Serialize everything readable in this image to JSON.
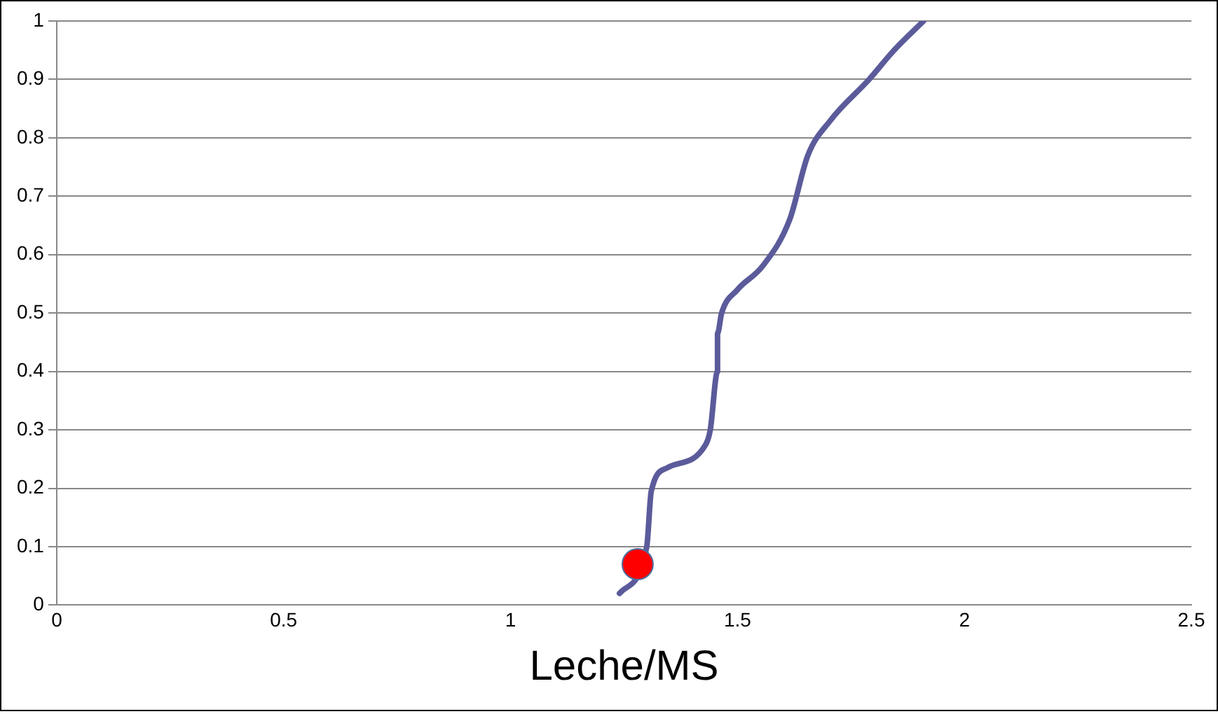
{
  "chart_data": {
    "type": "line",
    "xlabel": "Leche/MS",
    "xlim": [
      0,
      2.5
    ],
    "xticks": [
      0,
      0.5,
      1,
      1.5,
      2,
      2.5
    ],
    "ylim": [
      0,
      1
    ],
    "yticks": [
      0,
      0.1,
      0.2,
      0.3,
      0.4,
      0.5,
      0.6,
      0.7,
      0.8,
      0.9,
      1
    ],
    "grid": "y",
    "legend": false,
    "series": [
      {
        "color": "#5b5b9b",
        "marker": "none",
        "x": [
          1.24,
          1.3,
          1.31,
          1.345,
          1.43,
          1.44,
          1.456,
          1.456,
          1.465,
          1.5,
          1.555,
          1.615,
          1.655,
          1.705,
          1.79,
          1.845,
          1.91
        ],
        "values": [
          0.02,
          0.1,
          0.195,
          0.235,
          0.275,
          0.3,
          0.4,
          0.465,
          0.5,
          0.54,
          0.58,
          0.66,
          0.77,
          0.83,
          0.9,
          0.95,
          1
        ]
      },
      {
        "type": "scatter",
        "color": "#ff0000",
        "marker": "circle",
        "x": [
          1.28
        ],
        "values": [
          0.07
        ]
      }
    ]
  }
}
